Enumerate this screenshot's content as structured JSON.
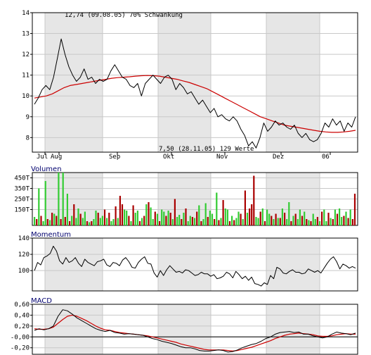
{
  "chart_data": [
    {
      "id": "price",
      "type": "line",
      "annotations": {
        "high": "12,74 (09.08.05) 70% Schwankung",
        "low": "7,50 (28.11.05) 129 Werte"
      },
      "ylim": [
        7.3,
        14
      ],
      "yticks": [
        "8",
        "9",
        "10",
        "11",
        "12",
        "13",
        "14"
      ],
      "xticks": [
        "Jul",
        "Aug",
        "Sep",
        "Okt",
        "Nov",
        "Dez",
        "06"
      ],
      "grid": true,
      "colors": {
        "price": "#000000",
        "average": "#cc0000",
        "band": "#e6e6e6"
      },
      "series": [
        {
          "values": [
            9.6,
            9.9,
            10.3,
            10.5,
            10.3,
            10.9,
            11.8,
            12.74,
            12.0,
            11.4,
            11.0,
            10.7,
            10.9,
            11.3,
            10.8,
            10.9,
            10.6,
            10.8,
            10.7,
            10.8,
            11.2,
            11.5,
            11.2,
            10.9,
            10.8,
            10.5,
            10.4,
            10.6,
            10.0,
            10.6,
            10.8,
            11.0,
            10.8,
            10.6,
            10.9,
            11.0,
            10.8,
            10.3,
            10.6,
            10.4,
            10.1,
            10.2,
            9.9,
            9.6,
            9.8,
            9.5,
            9.2,
            9.4,
            9.0,
            9.1,
            8.9,
            8.8,
            9.0,
            8.8,
            8.4,
            8.1,
            7.6,
            7.8,
            7.5,
            8.0,
            8.7,
            8.3,
            8.5,
            8.8,
            8.6,
            8.7,
            8.5,
            8.4,
            8.6,
            8.2,
            8.0,
            8.2,
            7.9,
            7.8,
            7.9,
            8.2,
            8.7,
            8.5,
            8.9,
            8.6,
            8.8,
            8.3,
            8.7,
            8.5,
            9.0
          ]
        },
        {
          "values": [
            9.9,
            9.95,
            10.0,
            10.1,
            10.25,
            10.4,
            10.5,
            10.55,
            10.6,
            10.65,
            10.7,
            10.75,
            10.8,
            10.85,
            10.88,
            10.9,
            10.92,
            10.95,
            10.97,
            10.98,
            10.97,
            10.95,
            10.9,
            10.85,
            10.8,
            10.72,
            10.65,
            10.55,
            10.45,
            10.35,
            10.2,
            10.05,
            9.9,
            9.75,
            9.6,
            9.45,
            9.3,
            9.15,
            9.0,
            8.9,
            8.8,
            8.7,
            8.6,
            8.55,
            8.5,
            8.45,
            8.4,
            8.35,
            8.3,
            8.27,
            8.25,
            8.25,
            8.27,
            8.3,
            8.35
          ]
        }
      ]
    },
    {
      "id": "volume",
      "type": "bar",
      "title": "Volumen",
      "ylim": [
        0,
        500
      ],
      "yticks": [
        "150T",
        "250T",
        "350T",
        "450T"
      ],
      "grid": true,
      "colors": {
        "up": "#33cc33",
        "down": "#aa0000"
      },
      "values": [
        80,
        60,
        350,
        90,
        40,
        420,
        60,
        50,
        120,
        110,
        90,
        500,
        60,
        520,
        80,
        300,
        40,
        90,
        200,
        70,
        160,
        110,
        70,
        130,
        40,
        30,
        40,
        60,
        140,
        120,
        70,
        90,
        150,
        70,
        120,
        40,
        60,
        180,
        70,
        280,
        200,
        150,
        140,
        90,
        40,
        190,
        120,
        140,
        40,
        70,
        90,
        200,
        220,
        170,
        60,
        130,
        110,
        40,
        150,
        130,
        90,
        140,
        120,
        60,
        250,
        80,
        100,
        60,
        120,
        160,
        40,
        90,
        80,
        70,
        130,
        190,
        40,
        60,
        210,
        80,
        140,
        110,
        60,
        310,
        50,
        70,
        240,
        160,
        150,
        40,
        90,
        50,
        70,
        130,
        110,
        60,
        330,
        120,
        160,
        200,
        470,
        80,
        70,
        130,
        160,
        40,
        150,
        110,
        90,
        60,
        110,
        70,
        70,
        160,
        120,
        60,
        220,
        40,
        90,
        110,
        60,
        150,
        90,
        130,
        60,
        50,
        40,
        110,
        60,
        80,
        40,
        130,
        150,
        40,
        120,
        70,
        60,
        150,
        110,
        160,
        80,
        90,
        130,
        70,
        150,
        60,
        300
      ],
      "up": [
        1,
        0,
        1,
        0,
        1,
        1,
        0,
        1,
        0,
        1,
        0,
        1,
        0,
        1,
        0,
        1,
        0,
        1,
        0,
        1,
        1,
        0,
        1,
        1,
        0,
        1,
        0,
        1,
        1,
        0,
        1,
        1,
        0,
        1,
        0,
        1,
        1,
        0,
        1,
        0,
        0,
        1,
        1,
        0,
        1,
        0,
        1,
        1,
        0,
        1,
        0,
        1,
        0,
        1,
        1,
        0,
        1,
        0,
        1,
        1,
        0,
        1,
        0,
        1,
        0,
        1,
        1,
        0,
        1,
        0,
        1,
        1,
        0,
        1,
        0,
        1,
        0,
        1,
        1,
        0,
        1,
        1,
        0,
        1,
        0,
        1,
        0,
        1,
        1,
        0,
        1,
        0,
        1,
        1,
        0,
        1,
        0,
        1,
        0,
        0,
        0,
        1,
        1,
        0,
        1,
        0,
        1,
        1,
        0,
        1,
        0,
        1,
        0,
        1,
        0,
        1,
        1,
        0,
        1,
        0,
        1,
        1,
        0,
        1,
        0,
        1,
        0,
        1,
        1,
        0,
        1,
        0,
        1,
        1,
        0,
        1,
        0,
        1,
        0,
        1,
        1,
        0,
        1,
        0,
        1
      ]
    },
    {
      "id": "momentum",
      "type": "line",
      "title": "Momentum",
      "ylim": [
        75,
        140
      ],
      "yticks": [
        "100",
        "120",
        "140"
      ],
      "grid": true,
      "colors": {
        "line": "#000000"
      },
      "values": [
        100,
        110,
        107,
        116,
        118,
        121,
        130,
        124,
        112,
        108,
        116,
        110,
        112,
        116,
        109,
        105,
        114,
        110,
        108,
        106,
        111,
        112,
        114,
        107,
        105,
        110,
        109,
        106,
        113,
        116,
        111,
        104,
        103,
        110,
        114,
        117,
        109,
        108,
        97,
        92,
        100,
        94,
        101,
        106,
        102,
        98,
        99,
        97,
        101,
        100,
        97,
        94,
        95,
        98,
        96,
        96,
        93,
        95,
        90,
        91,
        93,
        98,
        96,
        91,
        99,
        95,
        90,
        93,
        88,
        92,
        84,
        83,
        81,
        85,
        83,
        94,
        90,
        104,
        102,
        97,
        96,
        99,
        101,
        98,
        98,
        96,
        97,
        102,
        100,
        98,
        100,
        97,
        103,
        109,
        114,
        117,
        111,
        102,
        108,
        106,
        103,
        105,
        103
      ]
    },
    {
      "id": "macd",
      "type": "line",
      "title": "MACD",
      "ylim": [
        -0.32,
        0.6
      ],
      "yticks": [
        "-0,20",
        "-0,00",
        "0,20",
        "0,40",
        "0,60"
      ],
      "grid": true,
      "colors": {
        "macd": "#000000",
        "signal": "#cc0000",
        "zero": "#000000"
      },
      "series": [
        {
          "values": [
            0.12,
            0.15,
            0.13,
            0.15,
            0.2,
            0.38,
            0.5,
            0.48,
            0.42,
            0.35,
            0.3,
            0.25,
            0.2,
            0.15,
            0.12,
            0.1,
            0.12,
            0.08,
            0.07,
            0.05,
            0.06,
            0.05,
            0.04,
            0.03,
            0.0,
            -0.03,
            -0.05,
            -0.08,
            -0.1,
            -0.12,
            -0.15,
            -0.18,
            -0.2,
            -0.2,
            -0.22,
            -0.25,
            -0.26,
            -0.26,
            -0.25,
            -0.24,
            -0.25,
            -0.28,
            -0.27,
            -0.24,
            -0.2,
            -0.17,
            -0.14,
            -0.12,
            -0.08,
            -0.03,
            0.0,
            0.05,
            0.08,
            0.09,
            0.1,
            0.08,
            0.09,
            0.05,
            0.05,
            0.02,
            0.0,
            -0.02,
            0.0,
            0.05,
            0.09,
            0.07,
            0.06,
            0.04,
            0.07
          ]
        },
        {
          "values": [
            0.15,
            0.14,
            0.14,
            0.15,
            0.18,
            0.25,
            0.32,
            0.38,
            0.4,
            0.38,
            0.34,
            0.3,
            0.25,
            0.2,
            0.16,
            0.13,
            0.12,
            0.1,
            0.08,
            0.07,
            0.06,
            0.05,
            0.04,
            0.03,
            0.02,
            0.0,
            -0.02,
            -0.04,
            -0.06,
            -0.08,
            -0.1,
            -0.13,
            -0.15,
            -0.17,
            -0.19,
            -0.21,
            -0.23,
            -0.24,
            -0.24,
            -0.24,
            -0.24,
            -0.25,
            -0.26,
            -0.25,
            -0.23,
            -0.21,
            -0.19,
            -0.16,
            -0.13,
            -0.1,
            -0.07,
            -0.03,
            0.0,
            0.03,
            0.05,
            0.06,
            0.07,
            0.06,
            0.05,
            0.04,
            0.02,
            0.01,
            0.01,
            0.02,
            0.04,
            0.05,
            0.06,
            0.05,
            0.05
          ]
        }
      ]
    }
  ]
}
